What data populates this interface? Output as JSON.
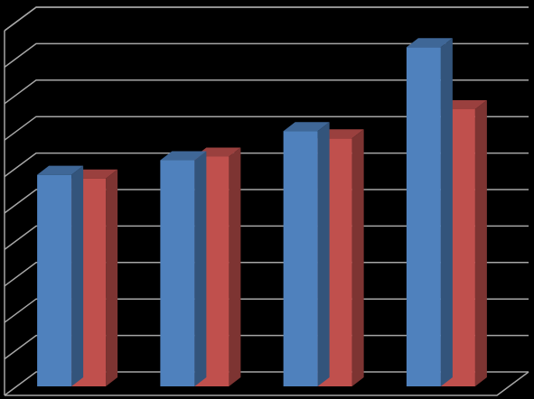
{
  "chart_data": {
    "type": "bar",
    "style": "3d-clustered-column",
    "title": "",
    "xlabel": "",
    "ylabel": "",
    "categories": [
      "",
      "",
      "",
      ""
    ],
    "series": [
      {
        "color": "#4f81bd",
        "values": [
          5.8,
          6.2,
          7.0,
          9.3
        ]
      },
      {
        "color": "#c0504d",
        "values": [
          5.7,
          6.3,
          6.8,
          7.6
        ]
      }
    ],
    "ylim": [
      0,
      10
    ],
    "gridlines": 11,
    "grid": true,
    "legend": "none",
    "background": "#000000",
    "grid_color": "#a6a6a6"
  }
}
